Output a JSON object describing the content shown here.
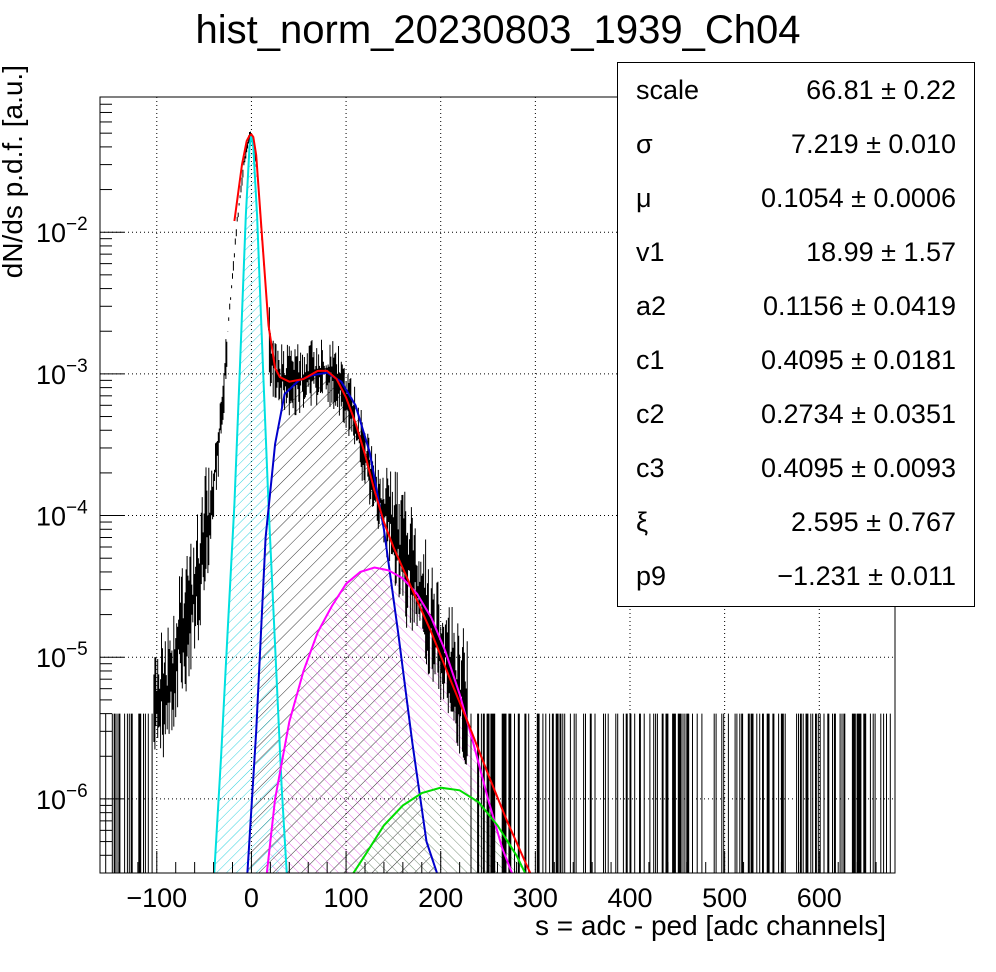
{
  "title": "hist_norm_20230803_1939_Ch04",
  "xlabel": "s = adc - ped [adc channels]",
  "ylabel": "dN/ds p.d.f. [a.u.]",
  "stats": [
    {
      "name": "scale",
      "value": "66.81 ± 0.22"
    },
    {
      "name": "σ",
      "value": "7.219 ± 0.010"
    },
    {
      "name": "μ",
      "value": "0.1054 ± 0.0006"
    },
    {
      "name": "v1",
      "value": "18.99 ± 1.57"
    },
    {
      "name": "a2",
      "value": "0.1156 ± 0.0419"
    },
    {
      "name": "c1",
      "value": "0.4095 ± 0.0181"
    },
    {
      "name": "c2",
      "value": "0.2734 ± 0.0351"
    },
    {
      "name": "c3",
      "value": "0.4095 ± 0.0093"
    },
    {
      "name": "ξ",
      "value": "2.595 ± 0.767"
    },
    {
      "name": "p9",
      "value": "−1.231 ± 0.011"
    }
  ],
  "colors": {
    "histogram": "#000000",
    "total_fit": "#ff0000",
    "pedestal": "#00e0e0",
    "one_pe": "#0000cc",
    "two_pe": "#ff00ff",
    "three_pe": "#00dd00",
    "grid": "#000000"
  },
  "chart_data": {
    "type": "line",
    "title": "hist_norm_20230803_1939_Ch04",
    "xlabel": "s = adc - ped [adc channels]",
    "ylabel": "dN/ds p.d.f. [a.u.]",
    "xlim": [
      -160,
      680
    ],
    "ylim": [
      3e-07,
      0.09
    ],
    "yscale": "log",
    "grid": true,
    "xticks": [
      -100,
      0,
      100,
      200,
      300,
      400,
      500,
      600
    ],
    "xtick_labels": [
      "−100",
      "0",
      "100",
      "200",
      "300",
      "400",
      "500",
      "600"
    ],
    "yticks": [
      1e-06,
      1e-05,
      0.0001,
      0.001,
      0.01
    ],
    "ytick_labels": [
      {
        "base": "10",
        "exp": "−6"
      },
      {
        "base": "10",
        "exp": "−5"
      },
      {
        "base": "10",
        "exp": "−4"
      },
      {
        "base": "10",
        "exp": "−3"
      },
      {
        "base": "10",
        "exp": "−2"
      }
    ],
    "series": [
      {
        "x": [
          -160,
          -120,
          -90,
          -70,
          -55,
          -45,
          -35,
          -25,
          -15,
          -8,
          -3,
          0,
          3,
          8,
          15,
          20,
          25,
          30,
          40,
          55,
          70,
          80,
          90,
          100,
          110,
          120,
          130,
          140,
          150,
          160,
          170,
          180,
          190,
          200,
          220,
          240,
          260,
          280,
          300,
          400,
          500,
          600,
          680
        ],
        "values": [
          4e-06,
          4e-06,
          6e-06,
          1.6e-05,
          4e-05,
          9e-05,
          0.0003,
          0.002,
          0.012,
          0.03,
          0.046,
          0.048,
          0.04,
          0.018,
          0.004,
          0.0014,
          0.00105,
          0.00095,
          0.0009,
          0.00092,
          0.00105,
          0.00108,
          0.00095,
          0.0007,
          0.00045,
          0.00025,
          0.00016,
          0.00011,
          8e-05,
          5.5e-05,
          3.8e-05,
          2.6e-05,
          1.8e-05,
          1.2e-05,
          6e-06,
          4e-06,
          4e-06,
          4e-06,
          4e-06,
          4e-06,
          4e-06,
          4e-06,
          4e-06
        ]
      },
      {
        "x": [
          -18,
          -10,
          -5,
          -2,
          0,
          2,
          5,
          10,
          18,
          25,
          30,
          40,
          55,
          70,
          80,
          90,
          100,
          110,
          120,
          130,
          140,
          150,
          170,
          190,
          210,
          230,
          250,
          270,
          290,
          300
        ],
        "values": [
          0.012,
          0.03,
          0.044,
          0.048,
          0.049,
          0.047,
          0.035,
          0.012,
          0.0022,
          0.0011,
          0.00095,
          0.00088,
          0.00092,
          0.00105,
          0.00105,
          0.00092,
          0.00068,
          0.00045,
          0.00027,
          0.00015,
          9e-05,
          6e-05,
          3e-05,
          1.5e-05,
          7e-06,
          3.3e-06,
          1.5e-06,
          7e-07,
          3.5e-07,
          2.5e-07
        ]
      },
      {
        "x": [
          -40,
          -32,
          -25,
          -18,
          -12,
          -6,
          -2,
          0,
          2,
          6,
          12,
          18,
          25,
          32,
          38
        ],
        "values": [
          2.5e-07,
          2e-06,
          1.6e-05,
          0.00012,
          0.0012,
          0.013,
          0.04,
          0.049,
          0.04,
          0.013,
          0.0012,
          0.00012,
          1.2e-05,
          1.2e-06,
          2.5e-07
        ]
      },
      {
        "x": [
          -5,
          5,
          15,
          25,
          35,
          50,
          65,
          80,
          95,
          110,
          125,
          140,
          155,
          170,
          185,
          200
        ],
        "values": [
          2.5e-07,
          3e-06,
          7e-05,
          0.00032,
          0.00072,
          0.0009,
          0.00098,
          0.00102,
          0.00088,
          0.0006,
          0.00028,
          8e-05,
          1.5e-05,
          2.5e-06,
          5e-07,
          2.5e-07
        ]
      },
      {
        "x": [
          15,
          25,
          40,
          55,
          70,
          85,
          100,
          115,
          130,
          145,
          160,
          175,
          190,
          205,
          220,
          235,
          250,
          265,
          280
        ],
        "values": [
          2.5e-07,
          1e-06,
          3.5e-06,
          8e-06,
          1.5e-05,
          2.3e-05,
          3.3e-05,
          4e-05,
          4.3e-05,
          4.1e-05,
          3.6e-05,
          2.8e-05,
          1.9e-05,
          1.1e-05,
          5.5e-06,
          2.4e-06,
          1e-06,
          4.5e-07,
          2.5e-07
        ]
      },
      {
        "x": [
          100,
          120,
          140,
          160,
          180,
          200,
          220,
          240,
          260,
          280,
          295
        ],
        "values": [
          2.5e-07,
          4e-07,
          6.5e-07,
          9e-07,
          1.1e-06,
          1.2e-06,
          1.15e-06,
          9.5e-07,
          6.5e-07,
          4e-07,
          2.5e-07
        ]
      }
    ]
  }
}
